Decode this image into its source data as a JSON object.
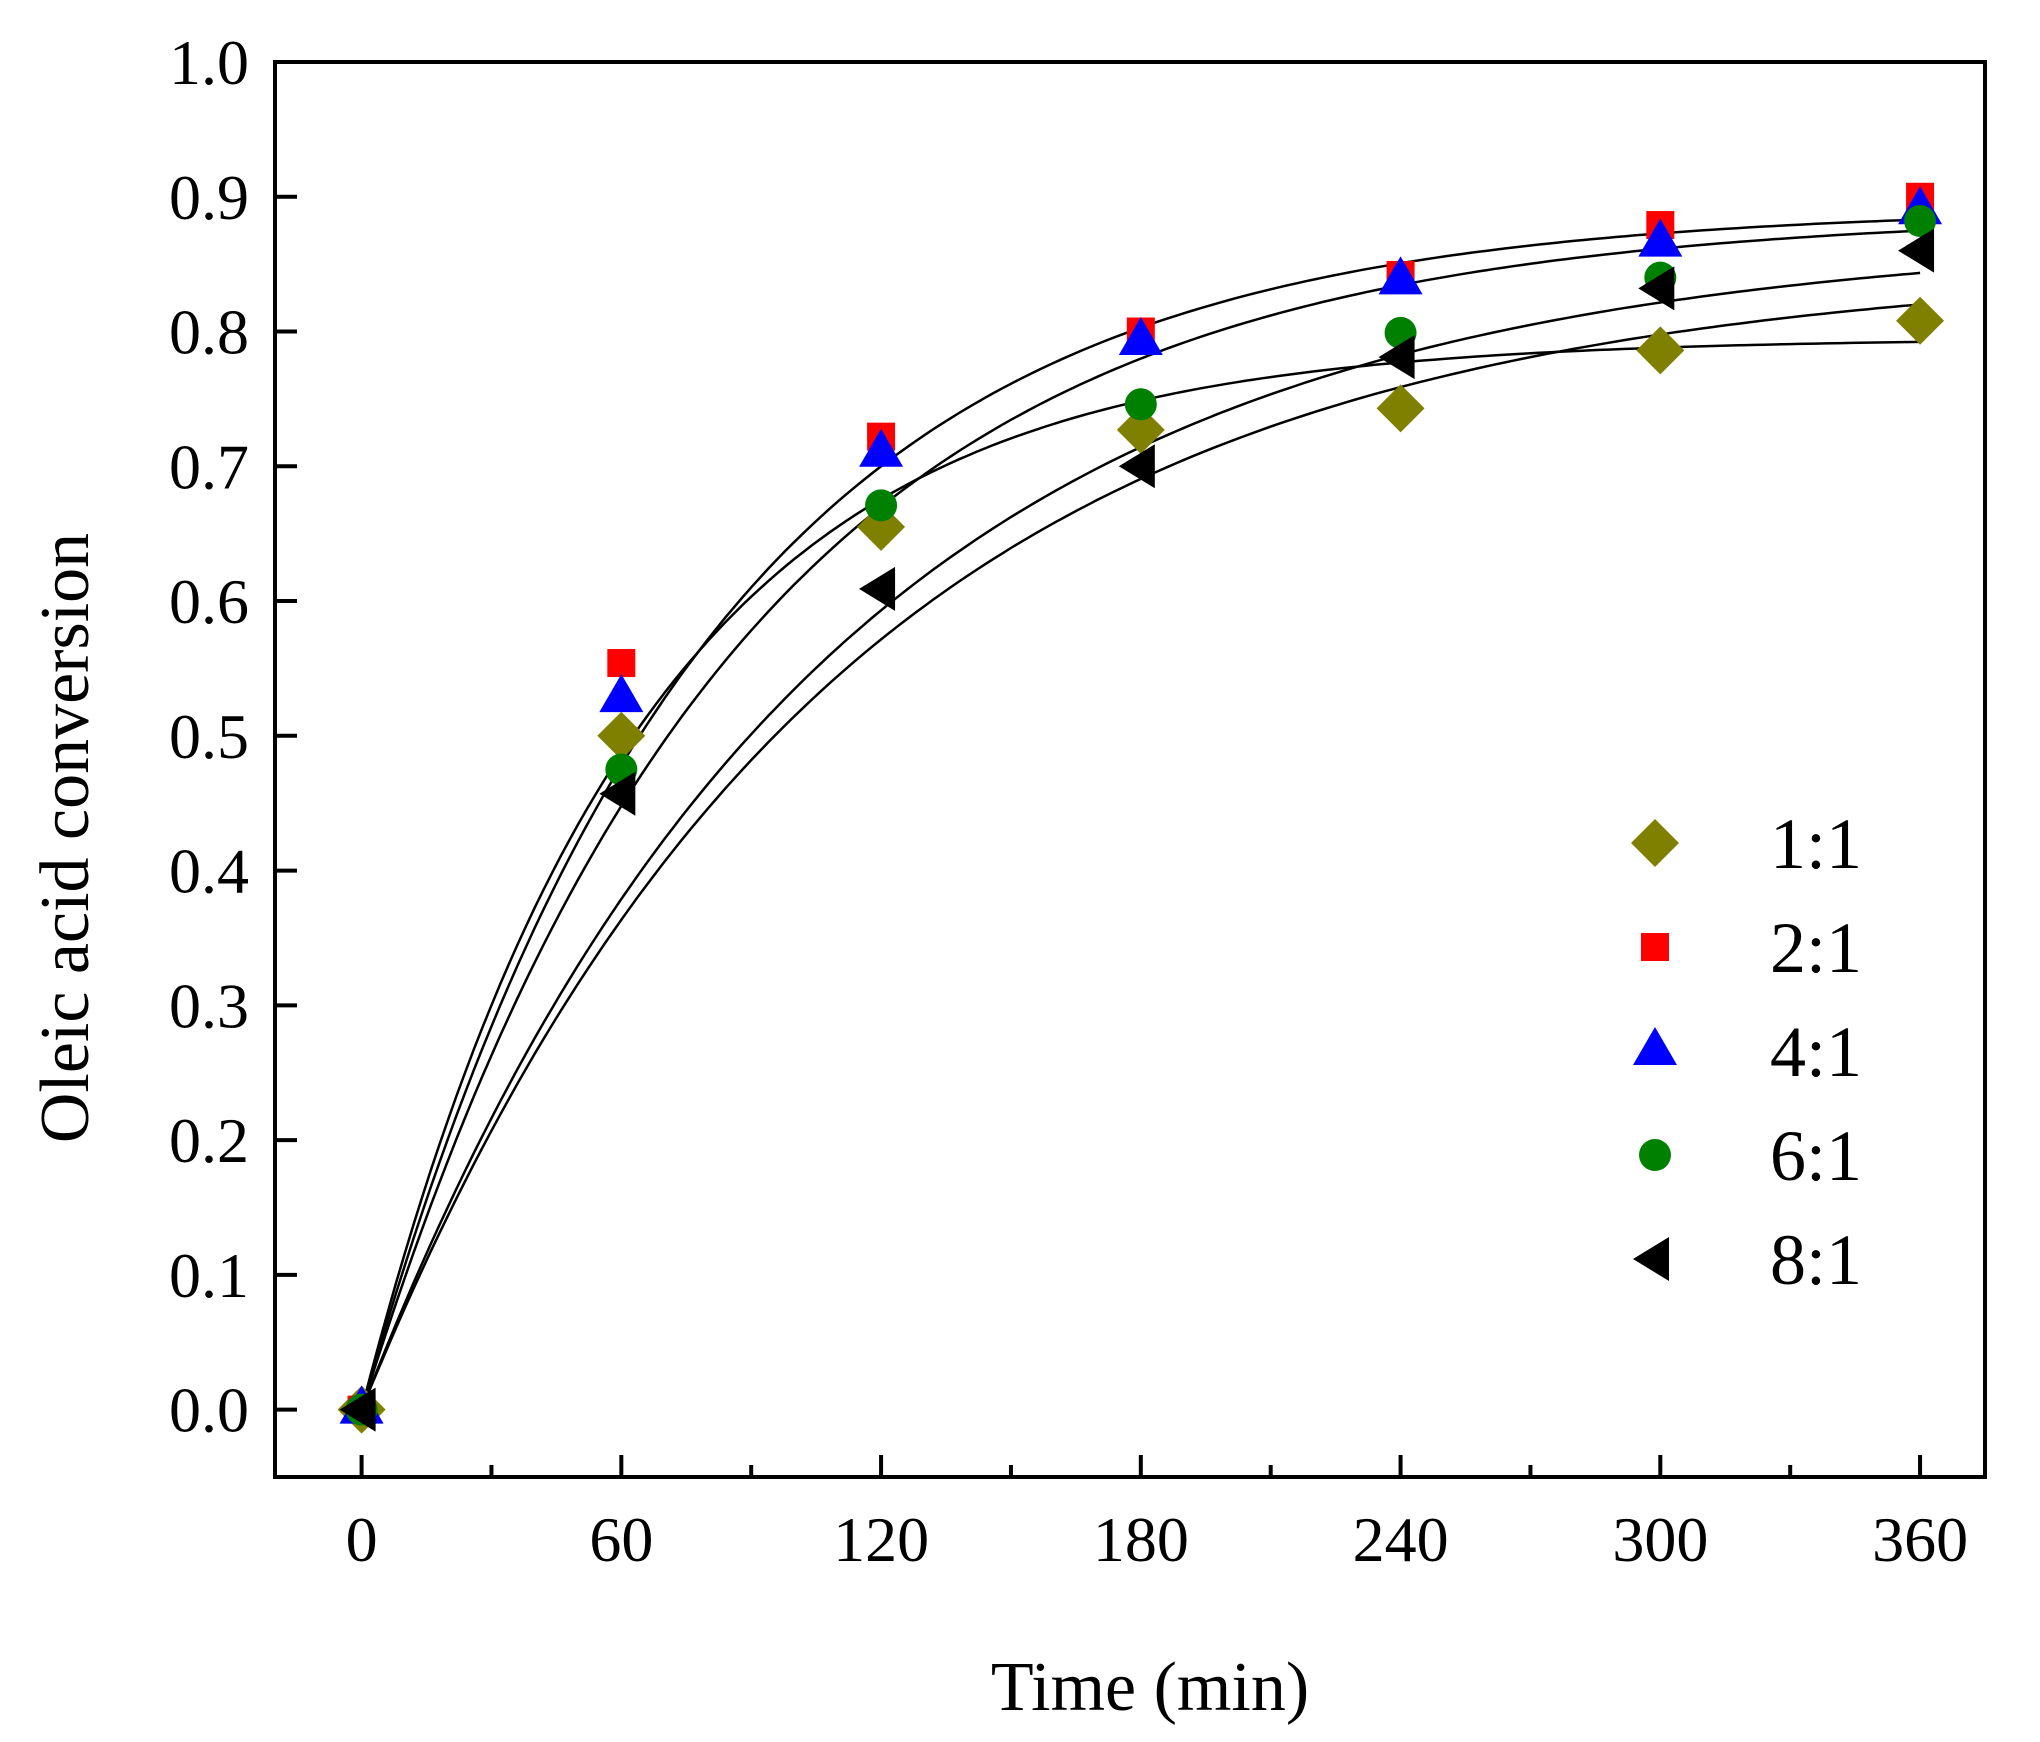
{
  "chart_data": {
    "type": "scatter",
    "title": "",
    "xlabel": "Time (min)",
    "ylabel": "Oleic acid conversion",
    "xlim": [
      -20,
      375
    ],
    "ylim": [
      -0.05,
      1.0
    ],
    "x_ticks": [
      0,
      60,
      120,
      180,
      240,
      300,
      360
    ],
    "x_tick_labels": [
      "0",
      "60",
      "120",
      "180",
      "240",
      "300",
      "360"
    ],
    "y_ticks": [
      0.0,
      0.1,
      0.2,
      0.3,
      0.4,
      0.5,
      0.6,
      0.7,
      0.8,
      0.9,
      1.0
    ],
    "y_tick_labels": [
      "0.0",
      "0.1",
      "0.2",
      "0.3",
      "0.4",
      "0.5",
      "0.6",
      "0.7",
      "0.8",
      "0.9",
      "1.0"
    ],
    "grid": false,
    "legend_position": "bottom-right",
    "x": [
      0,
      60,
      120,
      180,
      240,
      300,
      360
    ],
    "series": [
      {
        "name": "1:1",
        "marker": "diamond",
        "color": "#808000",
        "values": [
          0.0,
          0.5,
          0.655,
          0.727,
          0.743,
          0.786,
          0.808
        ],
        "fit": {
          "a": 0.795,
          "k": 0.0158
        }
      },
      {
        "name": "2:1",
        "marker": "square",
        "color": "#ff0000",
        "values": [
          0.0,
          0.554,
          0.722,
          0.8,
          0.842,
          0.879,
          0.9
        ],
        "fit": {
          "a": 0.892,
          "k": 0.0128
        }
      },
      {
        "name": "4:1",
        "marker": "triangle-up",
        "color": "#0000ff",
        "values": [
          0.0,
          0.528,
          0.71,
          0.793,
          0.838,
          0.866,
          0.89
        ],
        "fit": {
          "a": 0.888,
          "k": 0.0117
        }
      },
      {
        "name": "6:1",
        "marker": "circle",
        "color": "#008000",
        "values": [
          0.0,
          0.475,
          0.671,
          0.746,
          0.799,
          0.84,
          0.882
        ],
        "fit": {
          "a": 0.872,
          "k": 0.0095
        }
      },
      {
        "name": "8:1",
        "marker": "triangle-left",
        "color": "#000000",
        "values": [
          0.0,
          0.457,
          0.609,
          0.7,
          0.781,
          0.832,
          0.86
        ],
        "fit": {
          "a": 0.85,
          "k": 0.0093
        }
      }
    ]
  }
}
